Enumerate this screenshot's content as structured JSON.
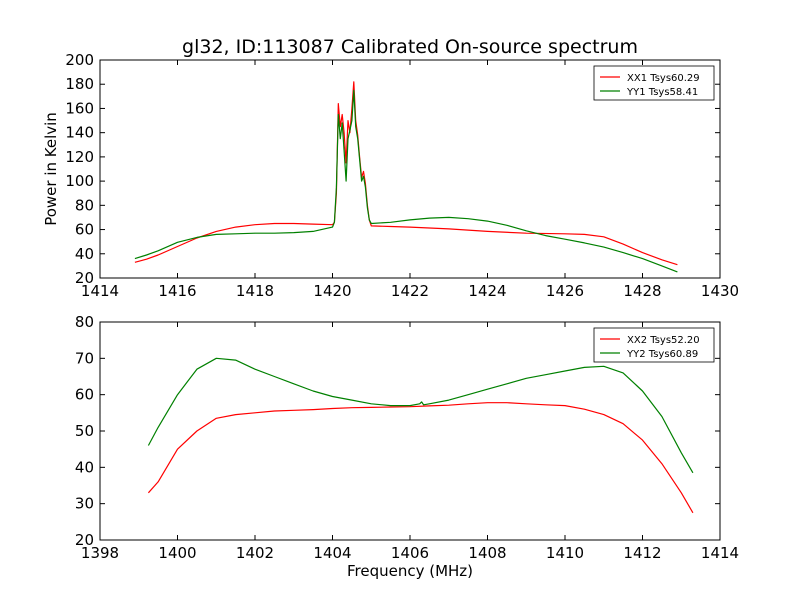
{
  "figure_title": "gl32, ID:113087 Calibrated On-source spectrum",
  "chart_data": [
    {
      "type": "line",
      "ylabel": "Power in Kelvin",
      "xlabel": "",
      "xlim": [
        1414,
        1430
      ],
      "ylim": [
        20,
        200
      ],
      "xticks": [
        1414,
        1416,
        1418,
        1420,
        1422,
        1424,
        1426,
        1428,
        1430
      ],
      "yticks": [
        20,
        40,
        60,
        80,
        100,
        120,
        140,
        160,
        180,
        200
      ],
      "grid": false,
      "legend_position": "top-right",
      "series": [
        {
          "name": "XX1 Tsys60.29",
          "color": "#ff0000",
          "points": [
            [
              1414.9,
              33
            ],
            [
              1415.2,
              35.5
            ],
            [
              1415.5,
              39
            ],
            [
              1416.0,
              46
            ],
            [
              1416.5,
              53
            ],
            [
              1417.0,
              58.5
            ],
            [
              1417.5,
              62
            ],
            [
              1418.0,
              64
            ],
            [
              1418.5,
              65
            ],
            [
              1419.0,
              65
            ],
            [
              1419.5,
              64.5
            ],
            [
              1420.0,
              64
            ],
            [
              1420.05,
              66
            ],
            [
              1420.1,
              90
            ],
            [
              1420.15,
              164
            ],
            [
              1420.2,
              145
            ],
            [
              1420.25,
              155
            ],
            [
              1420.3,
              140
            ],
            [
              1420.35,
              115
            ],
            [
              1420.4,
              150
            ],
            [
              1420.45,
              140
            ],
            [
              1420.5,
              160
            ],
            [
              1420.55,
              182
            ],
            [
              1420.6,
              150
            ],
            [
              1420.65,
              138
            ],
            [
              1420.7,
              120
            ],
            [
              1420.75,
              103
            ],
            [
              1420.8,
              108
            ],
            [
              1420.85,
              98
            ],
            [
              1420.9,
              80
            ],
            [
              1420.95,
              68
            ],
            [
              1421.0,
              63
            ],
            [
              1421.5,
              62.5
            ],
            [
              1422.0,
              62
            ],
            [
              1423.0,
              60.5
            ],
            [
              1424.0,
              58.5
            ],
            [
              1425.0,
              57
            ],
            [
              1426.0,
              56.5
            ],
            [
              1426.5,
              56
            ],
            [
              1427.0,
              54
            ],
            [
              1427.5,
              48
            ],
            [
              1428.0,
              41
            ],
            [
              1428.5,
              35
            ],
            [
              1428.9,
              31
            ]
          ]
        },
        {
          "name": "YY1 Tsys58.41",
          "color": "#008000",
          "points": [
            [
              1414.9,
              36
            ],
            [
              1415.2,
              39
            ],
            [
              1415.5,
              42.5
            ],
            [
              1416.0,
              49.5
            ],
            [
              1416.5,
              53.5
            ],
            [
              1417.0,
              56
            ],
            [
              1417.5,
              56.5
            ],
            [
              1418.0,
              57
            ],
            [
              1418.5,
              57
            ],
            [
              1419.0,
              57.5
            ],
            [
              1419.5,
              58.5
            ],
            [
              1420.0,
              62
            ],
            [
              1420.05,
              66
            ],
            [
              1420.1,
              95
            ],
            [
              1420.15,
              155
            ],
            [
              1420.2,
              135
            ],
            [
              1420.25,
              148
            ],
            [
              1420.3,
              125
            ],
            [
              1420.35,
              100
            ],
            [
              1420.4,
              135
            ],
            [
              1420.45,
              142
            ],
            [
              1420.5,
              150
            ],
            [
              1420.55,
              175
            ],
            [
              1420.6,
              145
            ],
            [
              1420.65,
              135
            ],
            [
              1420.7,
              118
            ],
            [
              1420.75,
              100
            ],
            [
              1420.8,
              104
            ],
            [
              1420.85,
              95
            ],
            [
              1420.9,
              78
            ],
            [
              1420.95,
              68
            ],
            [
              1421.0,
              65
            ],
            [
              1421.5,
              66
            ],
            [
              1422.0,
              68
            ],
            [
              1422.5,
              69.5
            ],
            [
              1423.0,
              70
            ],
            [
              1423.5,
              69
            ],
            [
              1424.0,
              67
            ],
            [
              1424.5,
              63.5
            ],
            [
              1425.0,
              59
            ],
            [
              1425.5,
              55
            ],
            [
              1426.0,
              52
            ],
            [
              1426.5,
              49
            ],
            [
              1427.0,
              45.5
            ],
            [
              1427.5,
              41
            ],
            [
              1428.0,
              36
            ],
            [
              1428.5,
              30
            ],
            [
              1428.9,
              25
            ]
          ]
        }
      ]
    },
    {
      "type": "line",
      "xlabel": "Frequency (MHz)",
      "ylabel": "",
      "xlim": [
        1398,
        1414
      ],
      "ylim": [
        20,
        80
      ],
      "xticks": [
        1398,
        1400,
        1402,
        1404,
        1406,
        1408,
        1410,
        1412,
        1414
      ],
      "yticks": [
        20,
        30,
        40,
        50,
        60,
        70,
        80
      ],
      "grid": false,
      "legend_position": "top-right",
      "series": [
        {
          "name": "XX2 Tsys52.20",
          "color": "#ff0000",
          "points": [
            [
              1399.25,
              33
            ],
            [
              1399.5,
              36
            ],
            [
              1400.0,
              45
            ],
            [
              1400.5,
              50
            ],
            [
              1401.0,
              53.5
            ],
            [
              1401.5,
              54.5
            ],
            [
              1402.0,
              55
            ],
            [
              1402.5,
              55.5
            ],
            [
              1403.0,
              55.7
            ],
            [
              1403.5,
              55.9
            ],
            [
              1404.0,
              56.2
            ],
            [
              1404.5,
              56.4
            ],
            [
              1405.0,
              56.5
            ],
            [
              1405.5,
              56.6
            ],
            [
              1406.0,
              56.7
            ],
            [
              1406.5,
              56.9
            ],
            [
              1407.0,
              57.1
            ],
            [
              1407.5,
              57.5
            ],
            [
              1408.0,
              57.8
            ],
            [
              1408.5,
              57.8
            ],
            [
              1409.0,
              57.5
            ],
            [
              1409.5,
              57.2
            ],
            [
              1410.0,
              57
            ],
            [
              1410.5,
              56
            ],
            [
              1411.0,
              54.5
            ],
            [
              1411.5,
              52
            ],
            [
              1412.0,
              47.5
            ],
            [
              1412.5,
              41
            ],
            [
              1413.0,
              33
            ],
            [
              1413.3,
              27.5
            ]
          ]
        },
        {
          "name": "YY2 Tsys60.89",
          "color": "#008000",
          "points": [
            [
              1399.25,
              46
            ],
            [
              1399.5,
              51
            ],
            [
              1400.0,
              60
            ],
            [
              1400.5,
              67
            ],
            [
              1401.0,
              70
            ],
            [
              1401.5,
              69.5
            ],
            [
              1402.0,
              67
            ],
            [
              1402.5,
              65
            ],
            [
              1403.0,
              63
            ],
            [
              1403.5,
              61
            ],
            [
              1404.0,
              59.5
            ],
            [
              1404.5,
              58.5
            ],
            [
              1405.0,
              57.5
            ],
            [
              1405.5,
              57
            ],
            [
              1406.0,
              57
            ],
            [
              1406.25,
              57.5
            ],
            [
              1406.3,
              58
            ],
            [
              1406.35,
              57.2
            ],
            [
              1406.5,
              57.5
            ],
            [
              1407.0,
              58.5
            ],
            [
              1407.5,
              60
            ],
            [
              1408.0,
              61.5
            ],
            [
              1408.5,
              63
            ],
            [
              1409.0,
              64.5
            ],
            [
              1409.5,
              65.5
            ],
            [
              1410.0,
              66.5
            ],
            [
              1410.5,
              67.5
            ],
            [
              1411.0,
              67.8
            ],
            [
              1411.5,
              66
            ],
            [
              1412.0,
              61
            ],
            [
              1412.5,
              54
            ],
            [
              1413.0,
              44
            ],
            [
              1413.3,
              38.5
            ]
          ]
        }
      ]
    }
  ]
}
